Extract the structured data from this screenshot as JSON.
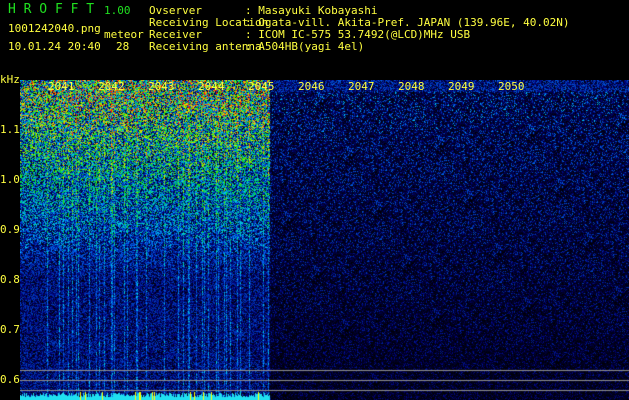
{
  "app": {
    "name": "H R O F F T",
    "version": "1.00"
  },
  "file": {
    "name": "1001242040.png",
    "datetime": "10.01.24 20:40"
  },
  "meteor": {
    "label": "meteor",
    "count": "28"
  },
  "info": [
    {
      "label": "Ovserver",
      "value": ": Masayuki Kobayashi"
    },
    {
      "label": "Receiving Location",
      "value": ": Ogata-vill. Akita-Pref. JAPAN (139.96E, 40.02N)"
    },
    {
      "label": "Receiver",
      "value": ": ICOM IC-575 53.7492(@LCD)MHz USB"
    },
    {
      "label": "Receiving antenna",
      "value": ": A504HB(yagi 4el)"
    }
  ],
  "axis": {
    "y_unit": "kHz",
    "y_ticks": [
      "1.1",
      "1.0",
      "0.9",
      "0.8",
      "0.7",
      "0.6"
    ],
    "x_ticks": [
      "2041",
      "2042",
      "2043",
      "2044",
      "2045",
      "2046",
      "2047",
      "2048",
      "2049",
      "2050"
    ]
  },
  "colors": {
    "text": "#ffff40",
    "logo": "#20e020",
    "background": "#000000"
  }
}
